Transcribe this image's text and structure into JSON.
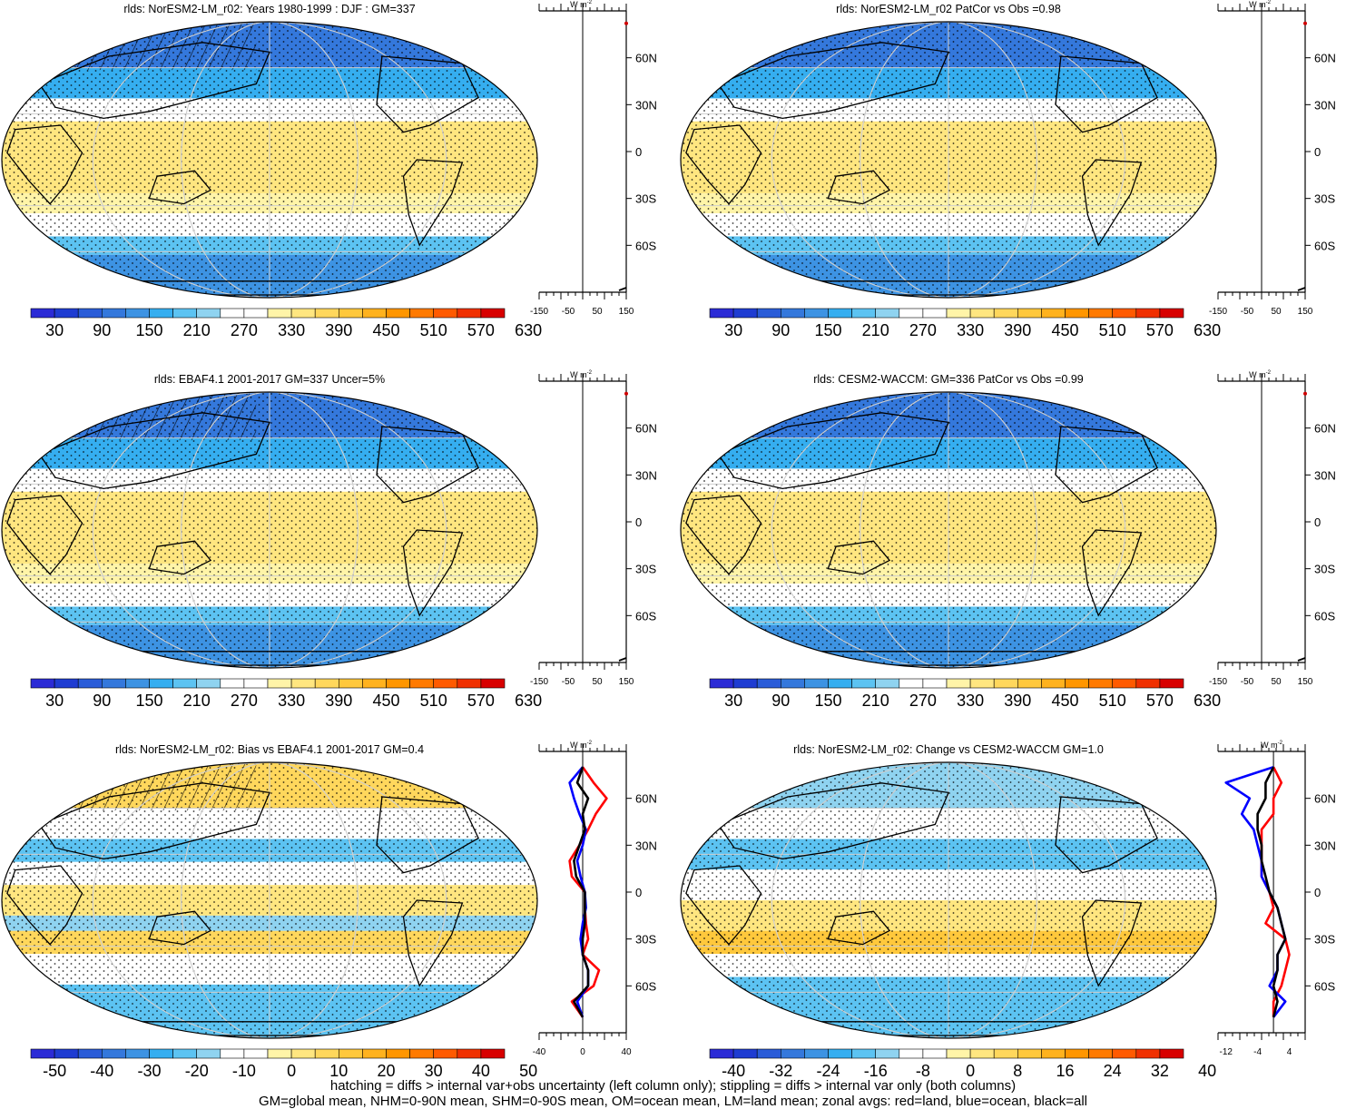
{
  "colorbars": {
    "absolute": {
      "labels": [
        "30",
        "90",
        "150",
        "210",
        "270",
        "330",
        "390",
        "450",
        "510",
        "570",
        "630"
      ],
      "colors": [
        "#2b2bd6",
        "#1e3cd2",
        "#2a5cd8",
        "#3478dc",
        "#3d93e3",
        "#35aef0",
        "#5cc3f2",
        "#8fd3f0",
        "#ffffff",
        "#ffffff",
        "#fff4a8",
        "#ffe680",
        "#ffd75c",
        "#ffc83c",
        "#ffb21e",
        "#ff9600",
        "#ff7a00",
        "#ff5a00",
        "#f03000",
        "#d80000"
      ]
    },
    "bias": {
      "labels": [
        "-50",
        "-40",
        "-30",
        "-20",
        "-10",
        "0",
        "10",
        "20",
        "30",
        "40",
        "50"
      ],
      "colors": [
        "#2b2bd6",
        "#1e3cd2",
        "#2a5cd8",
        "#3478dc",
        "#3d93e3",
        "#35aef0",
        "#5cc3f2",
        "#8fd3f0",
        "#ffffff",
        "#ffffff",
        "#fff4a8",
        "#ffe680",
        "#ffd75c",
        "#ffc83c",
        "#ffb21e",
        "#ff9600",
        "#ff7a00",
        "#ff5a00",
        "#f03000",
        "#d80000"
      ]
    },
    "change": {
      "labels": [
        "-40",
        "-32",
        "-24",
        "-16",
        "-8",
        "0",
        "8",
        "16",
        "24",
        "32",
        "40"
      ],
      "colors": [
        "#2b2bd6",
        "#1e3cd2",
        "#2a5cd8",
        "#3478dc",
        "#3d93e3",
        "#35aef0",
        "#5cc3f2",
        "#8fd3f0",
        "#ffffff",
        "#ffffff",
        "#fff4a8",
        "#ffe680",
        "#ffd75c",
        "#ffc83c",
        "#ffb21e",
        "#ff9600",
        "#ff7a00",
        "#ff5a00",
        "#f03000",
        "#d80000"
      ]
    }
  },
  "panels": [
    {
      "id": "p1",
      "title": "rlds: NorESM2-LM_r02: Years 1980-1999 : DJF : GM=337",
      "kind": "abs",
      "hatch": true,
      "stipple": true,
      "zonal": {
        "xlim": [
          -150,
          150
        ],
        "ticks": [
          "-150",
          "-50",
          "50",
          "150"
        ],
        "unit": "W m",
        "unit_sup": "-2",
        "lat_labels": [
          "60N",
          "30N",
          "0",
          "30S",
          "60S"
        ]
      }
    },
    {
      "id": "p2",
      "title": "rlds: NorESM2-LM_r02 PatCor vs Obs =0.98",
      "kind": "abs",
      "hatch": false,
      "stipple": true,
      "zonal": {
        "xlim": [
          -150,
          150
        ],
        "ticks": [
          "-150",
          "-50",
          "50",
          "150"
        ],
        "unit": "W m",
        "unit_sup": "-2",
        "lat_labels": [
          "60N",
          "30N",
          "0",
          "30S",
          "60S"
        ]
      }
    },
    {
      "id": "p3",
      "title": "rlds: EBAF4.1 2001-2017 GM=337 Uncer=5%",
      "kind": "abs",
      "hatch": true,
      "stipple": true,
      "zonal": {
        "xlim": [
          -150,
          150
        ],
        "ticks": [
          "-150",
          "-50",
          "50",
          "150"
        ],
        "unit": "W m",
        "unit_sup": "-2",
        "lat_labels": [
          "60N",
          "30N",
          "0",
          "30S",
          "60S"
        ]
      }
    },
    {
      "id": "p4",
      "title": "rlds: CESM2-WACCM: GM=336 PatCor vs Obs =0.99",
      "kind": "abs",
      "hatch": false,
      "stipple": true,
      "zonal": {
        "xlim": [
          -150,
          150
        ],
        "ticks": [
          "-150",
          "-50",
          "50",
          "150"
        ],
        "unit": "W m",
        "unit_sup": "-2",
        "lat_labels": [
          "60N",
          "30N",
          "0",
          "30S",
          "60S"
        ]
      }
    },
    {
      "id": "p5",
      "title": "rlds: NorESM2-LM_r02: Bias vs EBAF4.1 2001-2017 GM=0.4",
      "kind": "bias",
      "hatch": true,
      "stipple": true,
      "zonal": {
        "xlim": [
          -40,
          40
        ],
        "ticks": [
          "-40",
          "0",
          "40"
        ],
        "unit": "W m",
        "unit_sup": "-2",
        "lat_labels": [
          "60N",
          "30N",
          "0",
          "30S",
          "60S"
        ]
      }
    },
    {
      "id": "p6",
      "title": "rlds: NorESM2-LM_r02: Change vs CESM2-WACCM GM=1.0",
      "kind": "change",
      "hatch": false,
      "stipple": true,
      "zonal": {
        "xlim": [
          -14,
          8
        ],
        "ticks": [
          "-12",
          "-4",
          "4"
        ],
        "unit": "W m",
        "unit_sup": "-2",
        "lat_labels": [
          "60N",
          "30N",
          "0",
          "30S",
          "60S"
        ]
      }
    }
  ],
  "chart_data": [
    {
      "type": "line",
      "title": "rlds: NorESM2-LM_r02: Bias vs EBAF4.1 2001-2017 GM=0.4",
      "ylabel": "",
      "xlabel": "",
      "xlim": [
        -40,
        40
      ],
      "ylim": [
        -90,
        90
      ],
      "y": [
        80,
        70,
        60,
        50,
        40,
        30,
        20,
        10,
        0,
        -10,
        -20,
        -30,
        -40,
        -50,
        -60,
        -70,
        -80
      ],
      "series": [
        {
          "name": "",
          "color": "#ff0000",
          "values": [
            0,
            10,
            22,
            12,
            5,
            -3,
            -12,
            -10,
            2,
            2,
            3,
            5,
            0,
            15,
            10,
            -10,
            0
          ]
        },
        {
          "name": "",
          "color": "#0000ff",
          "values": [
            0,
            -12,
            -8,
            -3,
            3,
            0,
            -5,
            -2,
            2,
            3,
            0,
            -2,
            0,
            5,
            5,
            -5,
            0
          ]
        },
        {
          "name": "",
          "color": "#000000",
          "values": [
            0,
            -5,
            5,
            0,
            2,
            -3,
            -8,
            -6,
            2,
            2,
            2,
            0,
            0,
            5,
            5,
            -8,
            0
          ]
        }
      ]
    },
    {
      "type": "line",
      "title": "rlds: NorESM2-LM_r02: Change vs CESM2-WACCM GM=1.0",
      "ylabel": "",
      "xlabel": "",
      "xlim": [
        -14,
        8
      ],
      "ylim": [
        -90,
        90
      ],
      "y": [
        80,
        70,
        60,
        50,
        40,
        30,
        20,
        10,
        0,
        -10,
        -20,
        -30,
        -40,
        -50,
        -60,
        -70,
        -80
      ],
      "series": [
        {
          "name": "",
          "color": "#ff0000",
          "values": [
            0,
            2,
            0,
            0,
            -3,
            -3,
            -3,
            -3,
            -1,
            0,
            -2,
            3,
            4,
            3,
            2,
            0,
            0
          ]
        },
        {
          "name": "",
          "color": "#0000ff",
          "values": [
            0,
            -12,
            -6,
            -8,
            -5,
            -4,
            -3,
            -3,
            -1,
            1,
            2,
            3,
            1,
            1,
            -1,
            3,
            0
          ]
        },
        {
          "name": "",
          "color": "#000000",
          "values": [
            0,
            -2,
            -2,
            -4,
            -4,
            -3,
            -3,
            -2,
            -1,
            1,
            2,
            3,
            1,
            1,
            0,
            1,
            0
          ]
        }
      ]
    }
  ],
  "footer": {
    "line1": "hatching = diffs > internal var+obs uncertainty (left column only); stippling = diffs > internal var only (both columns)",
    "line2": "GM=global mean, NHM=0-90N mean, SHM=0-90S mean, OM=ocean mean, LM=land mean; zonal avgs: red=land, blue=ocean, black=all"
  }
}
